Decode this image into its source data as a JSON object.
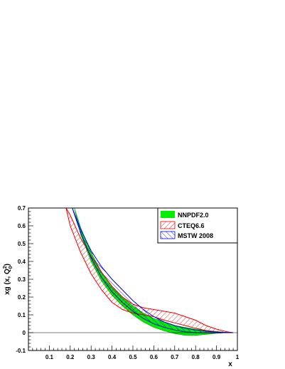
{
  "chart_data": {
    "type": "area",
    "title": "",
    "xlabel": "x",
    "ylabel": "xg (x, Q",
    "ylabel_sup": "2",
    "ylabel_sub": "0",
    "ylabel_tail": ")",
    "xlim": [
      0,
      1
    ],
    "ylim": [
      -0.1,
      0.7
    ],
    "xticks": [
      0.1,
      0.2,
      0.3,
      0.4,
      0.5,
      0.6,
      0.7,
      0.8,
      0.9,
      1
    ],
    "xtick_labels": [
      "0.1",
      "0.2",
      "0.3",
      "0.4",
      "0.5",
      "0.6",
      "0.7",
      "0.8",
      "0.9",
      "1"
    ],
    "yticks": [
      -0.1,
      0,
      0.1,
      0.2,
      0.3,
      0.4,
      0.5,
      0.6,
      0.7
    ],
    "ytick_labels": [
      "-0.1",
      "0",
      "0.1",
      "0.2",
      "0.3",
      "0.4",
      "0.5",
      "0.6",
      "0.7"
    ],
    "grid": false,
    "legend_position": "top-right",
    "series": [
      {
        "name": "NNPDF2.0",
        "color": "#00ee00",
        "style": "solid-band",
        "x": [
          0.22,
          0.25,
          0.3,
          0.35,
          0.4,
          0.45,
          0.5,
          0.55,
          0.6,
          0.65,
          0.7,
          0.75,
          0.8,
          0.85,
          0.9,
          0.95,
          0.98
        ],
        "upper": [
          0.7,
          0.59,
          0.45,
          0.34,
          0.26,
          0.2,
          0.15,
          0.11,
          0.08,
          0.06,
          0.04,
          0.03,
          0.02,
          0.013,
          0.007,
          0.002,
          0.0
        ],
        "lower": [
          0.7,
          0.55,
          0.4,
          0.29,
          0.21,
          0.15,
          0.1,
          0.06,
          0.03,
          0.01,
          -0.005,
          -0.015,
          -0.015,
          -0.01,
          -0.004,
          0.0,
          0.0
        ]
      },
      {
        "name": "CTEQ6.6",
        "color": "#ee0000",
        "style": "hatch-diag",
        "x": [
          0.18,
          0.2,
          0.25,
          0.3,
          0.35,
          0.4,
          0.45,
          0.5,
          0.55,
          0.6,
          0.65,
          0.7,
          0.75,
          0.8,
          0.85,
          0.9,
          0.95,
          0.98
        ],
        "upper": [
          0.7,
          0.66,
          0.53,
          0.43,
          0.34,
          0.26,
          0.2,
          0.16,
          0.14,
          0.13,
          0.12,
          0.11,
          0.09,
          0.07,
          0.04,
          0.02,
          0.005,
          0.0
        ],
        "lower": [
          0.7,
          0.6,
          0.45,
          0.33,
          0.24,
          0.17,
          0.13,
          0.11,
          0.1,
          0.09,
          0.07,
          0.055,
          0.04,
          0.025,
          0.012,
          0.004,
          0.0,
          0.0
        ]
      },
      {
        "name": "MSTW 2008",
        "color": "#0000ee",
        "style": "hatch-antidiag",
        "x": [
          0.21,
          0.25,
          0.3,
          0.35,
          0.4,
          0.45,
          0.5,
          0.55,
          0.6,
          0.65,
          0.7,
          0.75,
          0.8,
          0.85,
          0.9,
          0.95,
          0.98
        ],
        "upper": [
          0.7,
          0.58,
          0.46,
          0.37,
          0.3,
          0.24,
          0.18,
          0.13,
          0.09,
          0.06,
          0.04,
          0.025,
          0.015,
          0.008,
          0.003,
          0.001,
          0.0
        ],
        "lower": [
          0.7,
          0.56,
          0.42,
          0.31,
          0.23,
          0.17,
          0.12,
          0.08,
          0.05,
          0.03,
          0.015,
          0.005,
          0.0,
          -0.002,
          0.0,
          0.0,
          0.0
        ]
      }
    ]
  }
}
